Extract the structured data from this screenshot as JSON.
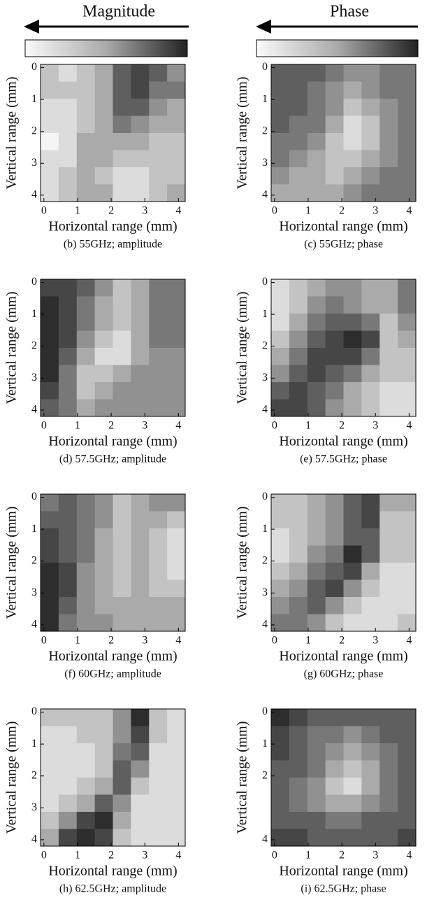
{
  "header": {
    "magnitude": "Magnitude",
    "phase": "Phase"
  },
  "chart_data": [
    {
      "type": "heatmap",
      "caption": "(b) 55GHz; amplitude",
      "xlabel": "Horizontal range (mm)",
      "ylabel": "Vertical range (mm)",
      "xlim": [
        -0.1,
        4.2
      ],
      "ylim": [
        -0.1,
        4.2
      ],
      "xticks": [
        0,
        1,
        2,
        3,
        4
      ],
      "yticks": [
        0,
        1,
        2,
        3,
        4
      ],
      "zlim": [
        0,
        9
      ],
      "z": [
        [
          2,
          1,
          2,
          3,
          6,
          7,
          6,
          4
        ],
        [
          2,
          2,
          2,
          3,
          6,
          7,
          5,
          5
        ],
        [
          1,
          1,
          2,
          3,
          6,
          6,
          4,
          3
        ],
        [
          1,
          1,
          2,
          3,
          5,
          4,
          3,
          3
        ],
        [
          0,
          1,
          3,
          3,
          3,
          3,
          2,
          2
        ],
        [
          1,
          1,
          3,
          3,
          2,
          2,
          2,
          2
        ],
        [
          1,
          2,
          3,
          2,
          1,
          1,
          2,
          2
        ],
        [
          1,
          2,
          3,
          3,
          1,
          1,
          2,
          3
        ]
      ]
    },
    {
      "type": "heatmap",
      "caption": "(c) 55GHz; phase",
      "xlabel": "Horizontal range (mm)",
      "ylabel": "Vertical range (mm)",
      "xlim": [
        -0.1,
        4.2
      ],
      "ylim": [
        -0.1,
        4.2
      ],
      "xticks": [
        0,
        1,
        2,
        3,
        4
      ],
      "yticks": [
        0,
        1,
        2,
        3,
        4
      ],
      "zlim": [
        0,
        9
      ],
      "z": [
        [
          6,
          6,
          6,
          5,
          4,
          4,
          5,
          5
        ],
        [
          6,
          6,
          5,
          4,
          3,
          4,
          5,
          5
        ],
        [
          6,
          6,
          5,
          4,
          2,
          3,
          4,
          5
        ],
        [
          6,
          5,
          5,
          3,
          1,
          2,
          4,
          5
        ],
        [
          5,
          5,
          4,
          2,
          1,
          2,
          4,
          5
        ],
        [
          5,
          4,
          3,
          2,
          2,
          3,
          4,
          5
        ],
        [
          4,
          3,
          3,
          2,
          3,
          4,
          5,
          5
        ],
        [
          3,
          3,
          3,
          3,
          4,
          5,
          5,
          5
        ]
      ]
    },
    {
      "type": "heatmap",
      "caption": "(d) 57.5GHz; amplitude",
      "xlabel": "Horizontal range (mm)",
      "ylabel": "Vertical range (mm)",
      "xlim": [
        -0.1,
        4.2
      ],
      "ylim": [
        -0.1,
        4.2
      ],
      "xticks": [
        0,
        1,
        2,
        3,
        4
      ],
      "yticks": [
        0,
        1,
        2,
        3,
        4
      ],
      "zlim": [
        0,
        9
      ],
      "z": [
        [
          7,
          7,
          6,
          4,
          2,
          3,
          5,
          5
        ],
        [
          8,
          7,
          5,
          3,
          2,
          3,
          5,
          5
        ],
        [
          8,
          7,
          5,
          3,
          2,
          3,
          5,
          5
        ],
        [
          8,
          7,
          4,
          2,
          1,
          3,
          5,
          5
        ],
        [
          8,
          6,
          3,
          1,
          1,
          3,
          4,
          4
        ],
        [
          8,
          5,
          2,
          2,
          3,
          4,
          4,
          4
        ],
        [
          7,
          5,
          2,
          3,
          4,
          4,
          4,
          4
        ],
        [
          6,
          5,
          3,
          4,
          4,
          4,
          4,
          4
        ]
      ]
    },
    {
      "type": "heatmap",
      "caption": "(e) 57.5GHz; phase",
      "xlabel": "Horizontal range (mm)",
      "ylabel": "Vertical range (mm)",
      "xlim": [
        -0.1,
        4.2
      ],
      "ylim": [
        -0.1,
        4.2
      ],
      "xticks": [
        0,
        1,
        2,
        3,
        4
      ],
      "yticks": [
        0,
        1,
        2,
        3,
        4
      ],
      "zlim": [
        0,
        9
      ],
      "z": [
        [
          1,
          2,
          3,
          4,
          4,
          3,
          3,
          5
        ],
        [
          1,
          2,
          4,
          5,
          4,
          3,
          3,
          5
        ],
        [
          1,
          3,
          5,
          6,
          6,
          5,
          2,
          4
        ],
        [
          2,
          4,
          6,
          7,
          8,
          7,
          2,
          3
        ],
        [
          3,
          5,
          7,
          7,
          7,
          5,
          2,
          2
        ],
        [
          4,
          6,
          7,
          6,
          5,
          3,
          2,
          2
        ],
        [
          6,
          7,
          6,
          5,
          3,
          2,
          1,
          1
        ],
        [
          7,
          7,
          6,
          4,
          3,
          2,
          1,
          1
        ]
      ]
    },
    {
      "type": "heatmap",
      "caption": "(f) 60GHz; amplitude",
      "xlabel": "Horizontal range (mm)",
      "ylabel": "Vertical range (mm)",
      "xlim": [
        -0.1,
        4.2
      ],
      "ylim": [
        -0.1,
        4.2
      ],
      "xticks": [
        0,
        1,
        2,
        3,
        4
      ],
      "yticks": [
        0,
        1,
        2,
        3,
        4
      ],
      "zlim": [
        0,
        9
      ],
      "z": [
        [
          5,
          6,
          5,
          4,
          2,
          3,
          4,
          4
        ],
        [
          6,
          6,
          5,
          4,
          2,
          3,
          3,
          2
        ],
        [
          7,
          6,
          5,
          3,
          2,
          3,
          2,
          1
        ],
        [
          7,
          6,
          5,
          3,
          2,
          3,
          2,
          1
        ],
        [
          8,
          7,
          4,
          3,
          2,
          3,
          2,
          1
        ],
        [
          8,
          7,
          4,
          3,
          2,
          3,
          2,
          2
        ],
        [
          8,
          6,
          4,
          3,
          3,
          3,
          3,
          3
        ],
        [
          8,
          5,
          4,
          4,
          3,
          3,
          3,
          3
        ]
      ]
    },
    {
      "type": "heatmap",
      "caption": "(g) 60GHz; phase",
      "xlabel": "Horizontal range (mm)",
      "ylabel": "Vertical range (mm)",
      "xlim": [
        -0.1,
        4.2
      ],
      "ylim": [
        -0.1,
        4.2
      ],
      "xticks": [
        0,
        1,
        2,
        3,
        4
      ],
      "yticks": [
        0,
        1,
        2,
        3,
        4
      ],
      "zlim": [
        0,
        9
      ],
      "z": [
        [
          2,
          2,
          3,
          4,
          6,
          7,
          3,
          3
        ],
        [
          2,
          2,
          3,
          4,
          6,
          7,
          2,
          2
        ],
        [
          1,
          2,
          3,
          4,
          6,
          6,
          2,
          2
        ],
        [
          1,
          2,
          4,
          5,
          8,
          6,
          2,
          2
        ],
        [
          2,
          3,
          5,
          6,
          7,
          3,
          1,
          1
        ],
        [
          3,
          4,
          6,
          7,
          4,
          2,
          1,
          1
        ],
        [
          4,
          5,
          6,
          4,
          2,
          1,
          1,
          1
        ],
        [
          5,
          5,
          4,
          2,
          1,
          1,
          1,
          2
        ]
      ]
    },
    {
      "type": "heatmap",
      "caption": "(h) 62.5GHz; amplitude",
      "xlabel": "Horizontal range (mm)",
      "ylabel": "Vertical range (mm)",
      "xlim": [
        -0.1,
        4.2
      ],
      "ylim": [
        -0.1,
        4.2
      ],
      "xticks": [
        0,
        1,
        2,
        3,
        4
      ],
      "yticks": [
        0,
        1,
        2,
        3,
        4
      ],
      "zlim": [
        0,
        9
      ],
      "z": [
        [
          2,
          2,
          2,
          2,
          4,
          8,
          2,
          1
        ],
        [
          1,
          1,
          2,
          2,
          4,
          7,
          2,
          1
        ],
        [
          1,
          1,
          1,
          2,
          5,
          6,
          1,
          1
        ],
        [
          1,
          1,
          1,
          2,
          6,
          4,
          1,
          1
        ],
        [
          1,
          1,
          2,
          3,
          6,
          2,
          1,
          1
        ],
        [
          1,
          2,
          3,
          6,
          4,
          1,
          1,
          1
        ],
        [
          2,
          4,
          7,
          8,
          3,
          1,
          1,
          1
        ],
        [
          3,
          7,
          8,
          7,
          2,
          1,
          1,
          1
        ]
      ]
    },
    {
      "type": "heatmap",
      "caption": "(i) 62.5GHz; phase",
      "xlabel": "Horizontal range (mm)",
      "ylabel": "Vertical range (mm)",
      "xlim": [
        -0.1,
        4.2
      ],
      "ylim": [
        -0.1,
        4.2
      ],
      "xticks": [
        0,
        1,
        2,
        3,
        4
      ],
      "yticks": [
        0,
        1,
        2,
        4
      ],
      "zlim": [
        0,
        9
      ],
      "z": [
        [
          8,
          7,
          6,
          6,
          6,
          6,
          6,
          6
        ],
        [
          7,
          6,
          5,
          5,
          4,
          5,
          6,
          6
        ],
        [
          7,
          6,
          5,
          4,
          3,
          4,
          5,
          6
        ],
        [
          6,
          6,
          5,
          3,
          2,
          3,
          5,
          6
        ],
        [
          6,
          5,
          4,
          2,
          1,
          3,
          5,
          6
        ],
        [
          6,
          5,
          4,
          3,
          3,
          4,
          5,
          6
        ],
        [
          6,
          6,
          6,
          5,
          5,
          6,
          6,
          6
        ],
        [
          7,
          7,
          6,
          6,
          6,
          6,
          6,
          7
        ]
      ]
    }
  ]
}
